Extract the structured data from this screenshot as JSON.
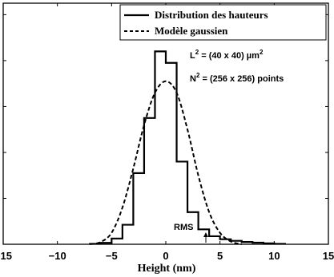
{
  "chart_data": {
    "type": "line",
    "xlabel": "Height (nm)",
    "ylabel": "",
    "xlim": [
      -15,
      15
    ],
    "ylim": [
      0,
      1.05
    ],
    "x_ticks": [
      -15,
      -10,
      -5,
      0,
      5,
      10,
      15
    ],
    "x_tick_labels": [
      "−15",
      "−10",
      "−5",
      "0",
      "5",
      "10",
      "15"
    ],
    "y_tick_labels_shown": false,
    "grid": false,
    "legend_position": "top-right",
    "series": [
      {
        "name": "Distribution des hauteurs",
        "style": "solid-step",
        "bin_edges": [
          -7,
          -6,
          -5,
          -4,
          -3,
          -2,
          -1,
          0,
          1,
          2,
          3,
          4,
          5,
          6,
          7,
          8,
          9,
          10,
          11
        ],
        "values": [
          0.002,
          0.006,
          0.025,
          0.085,
          0.31,
          0.55,
          0.84,
          0.79,
          0.36,
          0.14,
          0.065,
          0.035,
          0.022,
          0.015,
          0.01,
          0.007,
          0.004,
          0.002
        ]
      },
      {
        "name": "Modèle gaussien",
        "style": "dashed",
        "x": [
          -7,
          -6,
          -5,
          -4,
          -3,
          -2,
          -1,
          0,
          1,
          2,
          3,
          4,
          5,
          6,
          7
        ],
        "y": [
          0.0,
          0.01,
          0.05,
          0.16,
          0.33,
          0.52,
          0.66,
          0.71,
          0.66,
          0.5,
          0.3,
          0.14,
          0.05,
          0.012,
          0.0
        ]
      }
    ],
    "annotations": [
      {
        "text": "RMS",
        "x": 2,
        "y": 0.03,
        "arrow": true
      },
      {
        "text": "L",
        "sup": "2",
        "rest": " = (40 x 40) µm",
        "sup2": "2"
      },
      {
        "text": "N",
        "sup": "2",
        "rest": " = (256 x 256) points"
      }
    ]
  }
}
